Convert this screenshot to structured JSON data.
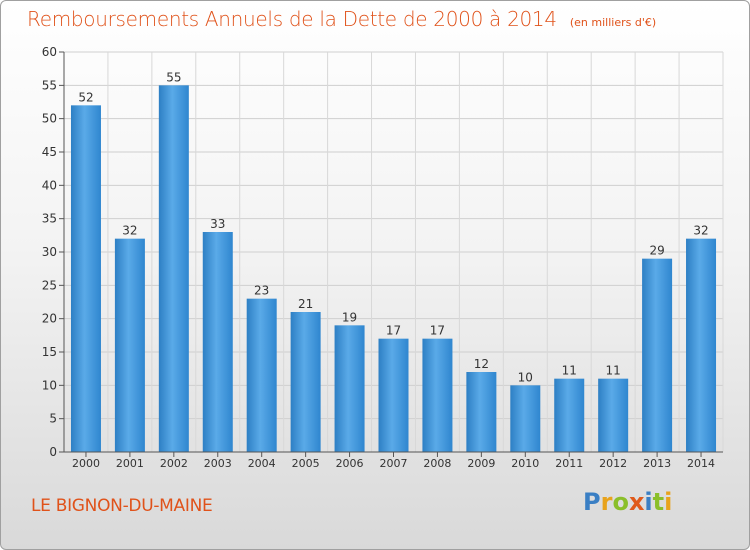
{
  "title": "Remboursements Annuels de la Dette de 2000 à 2014",
  "unit_note": "(en milliers d'€)",
  "commune": "LE BIGNON-DU-MAINE",
  "logo": {
    "letters": [
      "P",
      "r",
      "o",
      "x",
      "i",
      "t",
      "i"
    ],
    "colors": [
      "#3a7fc4",
      "#e8a31c",
      "#8bbf2a",
      "#e05a1a",
      "#3a7fc4",
      "#8bbf2a",
      "#e8a31c"
    ]
  },
  "chart_data": {
    "type": "bar",
    "categories": [
      "2000",
      "2001",
      "2002",
      "2003",
      "2004",
      "2005",
      "2006",
      "2007",
      "2008",
      "2009",
      "2010",
      "2011",
      "2012",
      "2013",
      "2014"
    ],
    "values": [
      52,
      32,
      55,
      33,
      23,
      21,
      19,
      17,
      17,
      12,
      10,
      11,
      11,
      29,
      32
    ],
    "ylim": [
      0,
      60
    ],
    "yticks": [
      0,
      5,
      10,
      15,
      20,
      25,
      30,
      35,
      40,
      45,
      50,
      55,
      60
    ],
    "grid": true,
    "bar_color": "#3b93d9"
  }
}
